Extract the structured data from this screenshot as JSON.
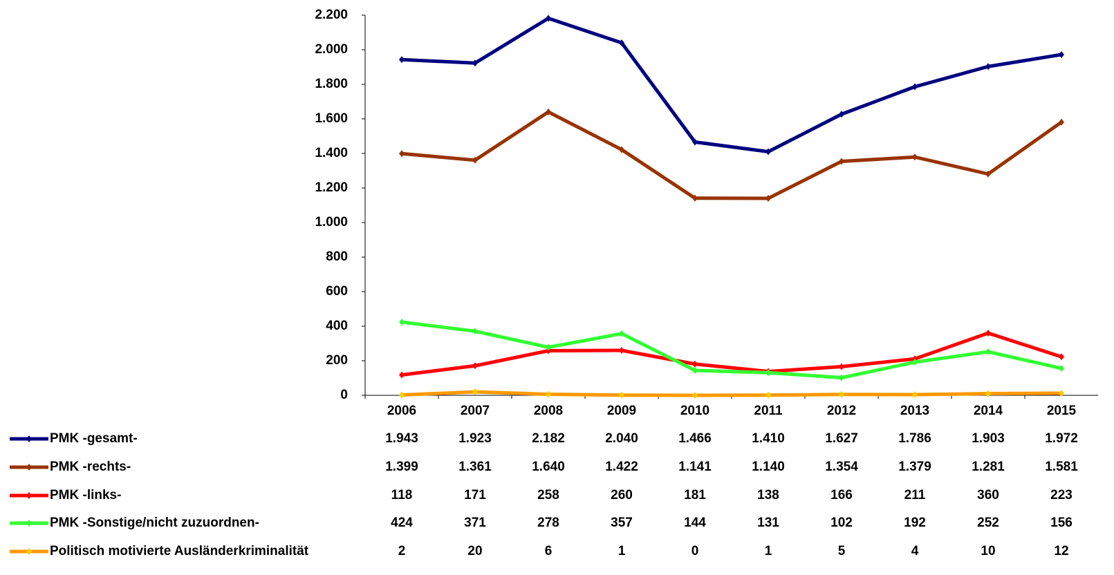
{
  "chart_data": {
    "type": "line",
    "categories": [
      "2006",
      "2007",
      "2008",
      "2009",
      "2010",
      "2011",
      "2012",
      "2013",
      "2014",
      "2015"
    ],
    "ylim": [
      0,
      2200
    ],
    "yticks": [
      0,
      200,
      400,
      600,
      800,
      {
        "value": 1000,
        "label": "1.000"
      },
      {
        "value": 1200,
        "label": "1.200"
      },
      {
        "value": 1400,
        "label": "1.400"
      },
      {
        "value": 1600,
        "label": "1.600"
      },
      {
        "value": 1800,
        "label": "1.800"
      },
      {
        "value": 2000,
        "label": "2.000"
      },
      {
        "value": 2200,
        "label": "2.200"
      }
    ],
    "series": [
      {
        "name": "PMK -gesamt-",
        "color": "#000080",
        "marker_color": "#000080",
        "values": [
          1943,
          1923,
          2182,
          2040,
          1466,
          1410,
          1627,
          1786,
          1903,
          1972
        ],
        "value_labels": [
          "1.943",
          "1.923",
          "2.182",
          "2.040",
          "1.466",
          "1.410",
          "1.627",
          "1.786",
          "1.903",
          "1.972"
        ]
      },
      {
        "name": "PMK -rechts-",
        "color": "#993300",
        "marker_color": "#993300",
        "values": [
          1399,
          1361,
          1640,
          1422,
          1141,
          1140,
          1354,
          1379,
          1281,
          1581
        ],
        "value_labels": [
          "1.399",
          "1.361",
          "1.640",
          "1.422",
          "1.141",
          "1.140",
          "1.354",
          "1.379",
          "1.281",
          "1.581"
        ]
      },
      {
        "name": "PMK -links-",
        "color": "#ff0000",
        "marker_color": "#ff0000",
        "values": [
          118,
          171,
          258,
          260,
          181,
          138,
          166,
          211,
          360,
          223
        ]
      },
      {
        "name": "PMK -Sonstige/nicht zuzuordnen-",
        "color": "#33ff33",
        "marker_color": "#33ff33",
        "values": [
          424,
          371,
          278,
          357,
          144,
          131,
          102,
          192,
          252,
          156
        ]
      },
      {
        "name": "Politisch motivierte Ausländerkriminalität",
        "color": "#ff9900",
        "marker_color": "#ffcc00",
        "values": [
          2,
          20,
          6,
          1,
          0,
          1,
          5,
          4,
          10,
          12
        ]
      }
    ]
  }
}
